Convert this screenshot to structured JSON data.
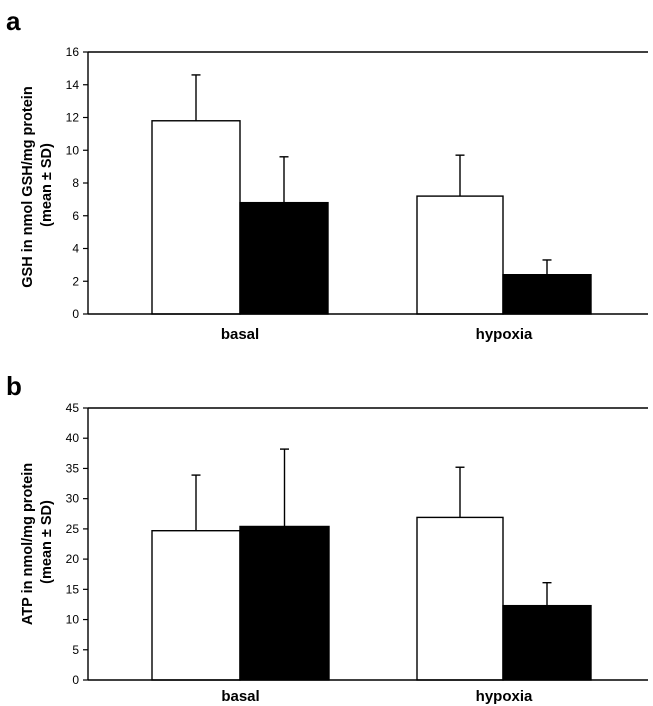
{
  "chart_data": [
    {
      "panel": "a",
      "type": "bar",
      "categories": [
        "basal",
        "hypoxia"
      ],
      "series": [
        {
          "values": [
            11.8,
            7.2
          ],
          "errors": [
            2.8,
            2.5
          ],
          "fill": "#ffffff"
        },
        {
          "values": [
            6.8,
            2.4
          ],
          "errors": [
            2.8,
            0.9
          ],
          "fill": "#000000"
        }
      ],
      "ylabel_lines": [
        "GSH in nmol GSH/mg protein",
        "(mean ± SD)"
      ],
      "ylim": [
        0,
        16
      ],
      "yticks": [
        0,
        2,
        4,
        6,
        8,
        10,
        12,
        14,
        16
      ],
      "grid": false,
      "legend": "none"
    },
    {
      "panel": "b",
      "type": "bar",
      "categories": [
        "basal",
        "hypoxia"
      ],
      "series": [
        {
          "values": [
            24.7,
            26.9
          ],
          "errors": [
            9.2,
            8.3
          ],
          "fill": "#ffffff"
        },
        {
          "values": [
            25.4,
            12.3
          ],
          "errors": [
            12.8,
            3.8
          ],
          "fill": "#000000"
        }
      ],
      "ylabel_lines": [
        "ATP in nmol/mg protein",
        "(mean ± SD)"
      ],
      "ylim": [
        0,
        45
      ],
      "yticks": [
        0,
        5,
        10,
        15,
        20,
        25,
        30,
        35,
        40,
        45
      ],
      "grid": false,
      "legend": "none"
    }
  ]
}
